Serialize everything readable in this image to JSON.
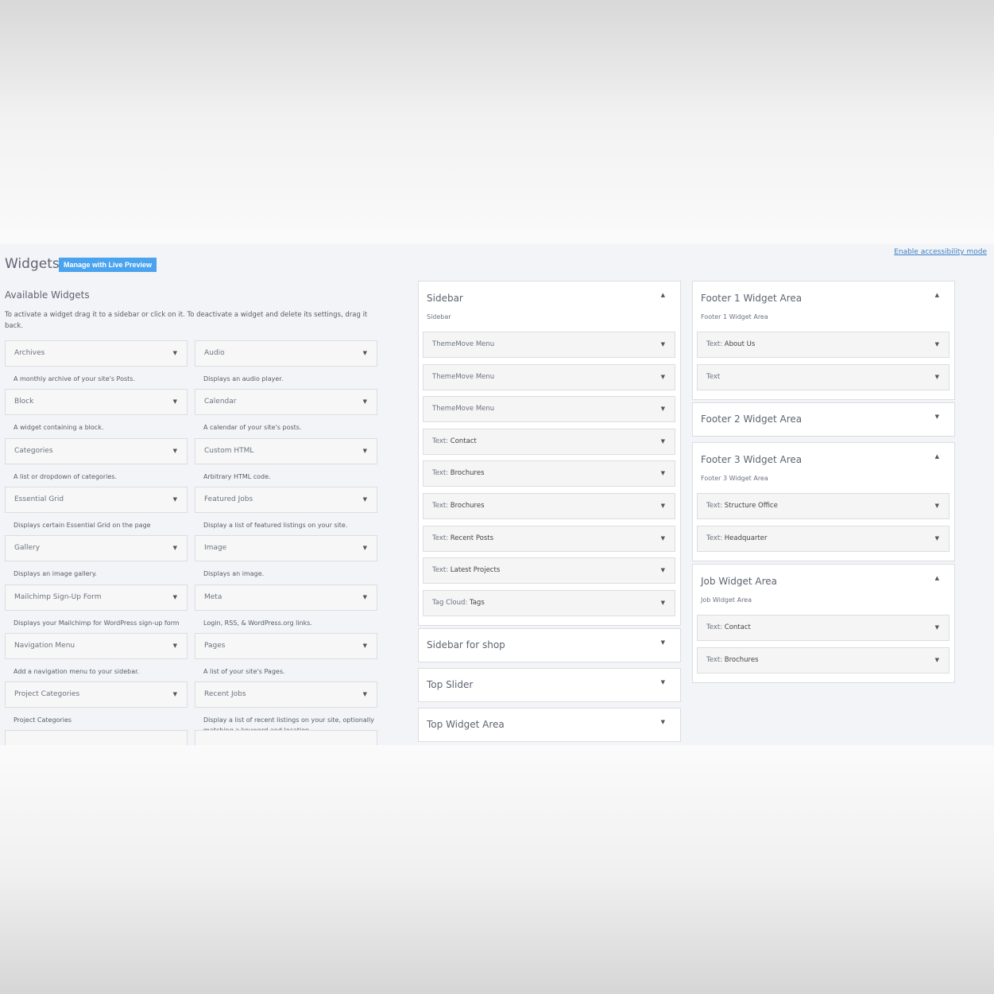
{
  "header": {
    "title": "Widgets",
    "live_preview": "Manage with Live Preview",
    "accessibility": "Enable accessibility mode"
  },
  "available": {
    "title": "Available Widgets",
    "intro": "To activate a widget drag it to a sidebar or click on it. To deactivate a widget and delete its settings, drag it back.",
    "widgets": [
      {
        "name": "Archives",
        "desc": "A monthly archive of your site's Posts."
      },
      {
        "name": "Audio",
        "desc": "Displays an audio player."
      },
      {
        "name": "Block",
        "desc": "A widget containing a block."
      },
      {
        "name": "Calendar",
        "desc": "A calendar of your site's posts."
      },
      {
        "name": "Categories",
        "desc": "A list or dropdown of categories."
      },
      {
        "name": "Custom HTML",
        "desc": "Arbitrary HTML code."
      },
      {
        "name": "Essential Grid",
        "desc": "Displays certain Essential Grid on the page"
      },
      {
        "name": "Featured Jobs",
        "desc": "Display a list of featured listings on your site."
      },
      {
        "name": "Gallery",
        "desc": "Displays an image gallery."
      },
      {
        "name": "Image",
        "desc": "Displays an image."
      },
      {
        "name": "Mailchimp Sign-Up Form",
        "desc": "Displays your Mailchimp for WordPress sign-up form"
      },
      {
        "name": "Meta",
        "desc": "Login, RSS, & WordPress.org links."
      },
      {
        "name": "Navigation Menu",
        "desc": "Add a navigation menu to your sidebar."
      },
      {
        "name": "Pages",
        "desc": "A list of your site's Pages."
      },
      {
        "name": "Project Categories",
        "desc": "Project Categories"
      },
      {
        "name": "Recent Jobs",
        "desc": "Display a list of recent listings on your site, optionally matching a keyword and location."
      }
    ]
  },
  "areas": [
    {
      "title": "Sidebar",
      "sub": "Sidebar",
      "open": true,
      "items": [
        [
          "ThemeMove Menu",
          ""
        ],
        [
          "ThemeMove Menu",
          ""
        ],
        [
          "ThemeMove Menu",
          ""
        ],
        [
          "Text: ",
          "Contact"
        ],
        [
          "Text: ",
          "Brochures"
        ],
        [
          "Text: ",
          "Brochures"
        ],
        [
          "Text: ",
          "Recent Posts"
        ],
        [
          "Text: ",
          "Latest Projects"
        ],
        [
          "Tag Cloud: ",
          "Tags"
        ]
      ]
    },
    {
      "title": "Sidebar for shop",
      "open": false
    },
    {
      "title": "Top Slider",
      "open": false
    },
    {
      "title": "Top Widget Area",
      "open": false
    },
    {
      "title": "Footer 1 Widget Area",
      "sub": "Footer 1 Widget Area",
      "open": true,
      "items": [
        [
          "Text: ",
          "About Us"
        ],
        [
          "Text",
          ""
        ]
      ]
    },
    {
      "title": "Footer 2 Widget Area",
      "open": false
    },
    {
      "title": "Footer 3 Widget Area",
      "sub": "Footer 3 Widget Area",
      "open": true,
      "items": [
        [
          "Text: ",
          "Structure Office"
        ],
        [
          "Text: ",
          "Headquarter"
        ]
      ]
    },
    {
      "title": "Job Widget Area",
      "sub": "Job Widget Area",
      "open": true,
      "items": [
        [
          "Text: ",
          "Contact"
        ],
        [
          "Text: ",
          "Brochures"
        ]
      ]
    }
  ],
  "icons": {
    "collapse": "triangle-up-icon",
    "expand": "triangle-down-icon"
  },
  "colors": {
    "accent": "#4aa3ee",
    "link": "#3b7fc4"
  }
}
